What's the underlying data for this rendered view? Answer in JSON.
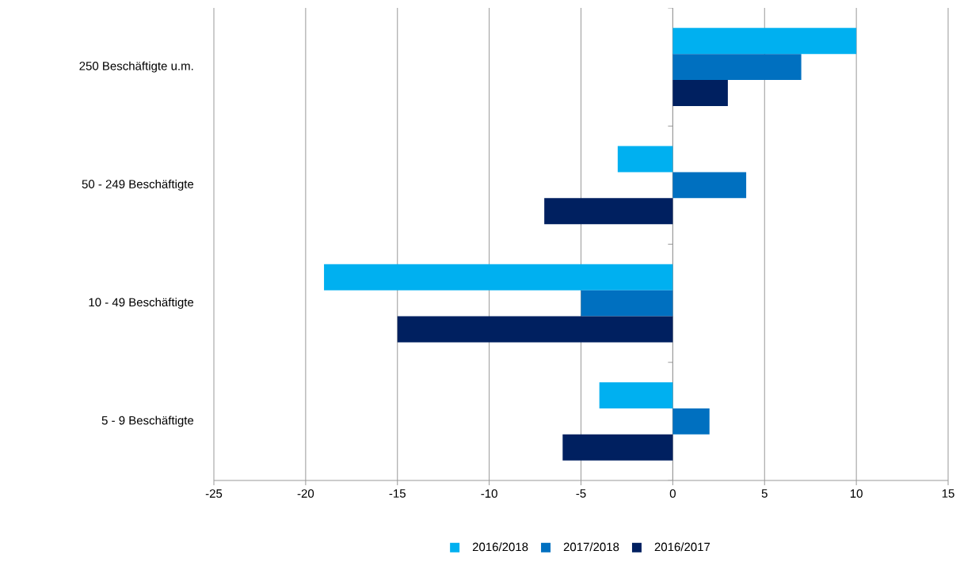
{
  "chart_data": {
    "type": "bar",
    "orientation": "horizontal",
    "categories": [
      "250 Beschäftigte u.m.",
      "50 - 249 Beschäftigte",
      "10 - 49 Beschäftigte",
      "5 - 9 Beschäftigte"
    ],
    "series": [
      {
        "name": "2016/2018",
        "color": "#00b0f0",
        "values": [
          10,
          -3,
          -19,
          -4
        ]
      },
      {
        "name": "2017/2018",
        "color": "#0070c0",
        "values": [
          7,
          4,
          -5,
          2
        ]
      },
      {
        "name": "2016/2017",
        "color": "#002060",
        "values": [
          3,
          -7,
          -15,
          -6
        ]
      }
    ],
    "xlim": [
      -25,
      15
    ],
    "xticks": [
      -25,
      -20,
      -15,
      -10,
      -5,
      0,
      5,
      10,
      15
    ],
    "grid": "x",
    "legend": "bottom"
  }
}
